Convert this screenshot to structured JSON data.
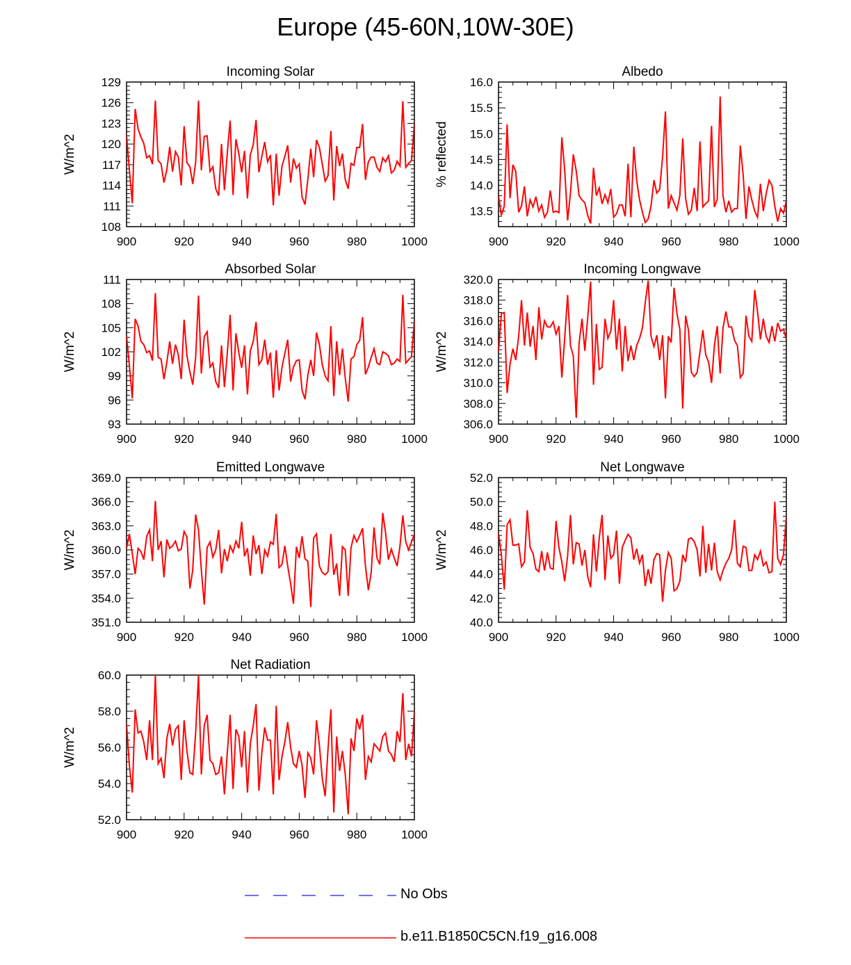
{
  "figure": {
    "title": "Europe (45-60N,10W-30E)"
  },
  "legend": {
    "items": [
      {
        "label": "No Obs",
        "color": "#4040e0",
        "style": "dashed"
      },
      {
        "label": "b.e11.B1850C5CN.f19_g16.008",
        "color": "#ff0000",
        "style": "solid"
      }
    ]
  },
  "chart_data": [
    {
      "type": "line",
      "title": "Incoming Solar",
      "xlabel": "",
      "ylabel": "W/m^2",
      "xlim": [
        900,
        1000
      ],
      "ylim": [
        108,
        129
      ],
      "xticks": [
        900,
        920,
        940,
        960,
        980,
        1000
      ],
      "yticks": [
        108,
        111,
        114,
        117,
        120,
        123,
        126,
        129
      ],
      "ytick_labels": [
        "108",
        "111",
        "114",
        "117",
        "120",
        "123",
        "126",
        "129"
      ],
      "series": [
        {
          "name": "b.e11.B1850C5CN.f19_g16.008",
          "color": "#ff0000",
          "x_start": 900,
          "x_step": 1,
          "values": [
            121.3,
            116.2,
            111.4,
            125.1,
            122.2,
            121.0,
            120.1,
            118.0,
            118.3,
            117.1,
            126.3,
            117.6,
            117.1,
            114.4,
            116.3,
            119.6,
            116.0,
            118.9,
            118.1,
            114.0,
            122.6,
            117.3,
            116.7,
            114.2,
            117.3,
            126.3,
            116.2,
            121.1,
            121.2,
            116.0,
            116.7,
            113.5,
            112.5,
            120.0,
            113.3,
            118.7,
            123.4,
            112.6,
            120.7,
            118.6,
            115.9,
            119.0,
            112.1,
            118.4,
            119.9,
            123.5,
            115.9,
            118.2,
            120.3,
            117.4,
            118.4,
            111.1,
            118.6,
            112.5,
            116.8,
            118.2,
            119.8,
            114.4,
            117.9,
            116.5,
            117.1,
            112.3,
            111.2,
            114.9,
            119.3,
            115.2,
            120.6,
            119.5,
            117.1,
            114.6,
            115.4,
            121.9,
            111.8,
            119.7,
            116.8,
            118.6,
            114.8,
            113.5,
            117.2,
            116.9,
            119.5,
            119.5,
            122.9,
            114.8,
            117.4,
            118.1,
            118.1,
            116.6,
            116.0,
            118.0,
            117.4,
            118.3,
            115.8,
            116.2,
            117.5,
            116.8,
            126.2,
            116.6,
            117.2,
            117.6,
            123.0
          ]
        }
      ]
    },
    {
      "type": "line",
      "title": "Albedo",
      "xlabel": "",
      "ylabel": "% reflected",
      "xlim": [
        900,
        1000
      ],
      "ylim": [
        13.2,
        16.0
      ],
      "xticks": [
        900,
        920,
        940,
        960,
        980,
        1000
      ],
      "yticks": [
        13.5,
        14.0,
        14.5,
        15.0,
        15.5,
        16.0
      ],
      "ytick_labels": [
        "13.5",
        "14.0",
        "14.5",
        "15.0",
        "15.5",
        "16.0"
      ],
      "series": [
        {
          "name": "b.e11.B1850C5CN.f19_g16.008",
          "color": "#ff0000",
          "x_start": 900,
          "x_step": 1,
          "values": [
            13.8,
            13.42,
            13.6,
            15.18,
            13.75,
            14.4,
            14.27,
            13.48,
            13.6,
            13.98,
            13.4,
            13.72,
            13.58,
            13.78,
            13.5,
            13.62,
            13.38,
            13.48,
            13.9,
            13.48,
            13.5,
            13.47,
            14.93,
            14.3,
            13.32,
            13.85,
            14.6,
            14.28,
            13.8,
            13.72,
            13.66,
            13.42,
            13.26,
            14.34,
            13.8,
            13.95,
            13.64,
            13.82,
            13.66,
            13.93,
            13.38,
            13.45,
            13.62,
            13.62,
            13.4,
            14.42,
            13.38,
            14.75,
            14.1,
            13.72,
            13.48,
            13.28,
            13.35,
            13.6,
            14.1,
            13.85,
            13.92,
            14.55,
            15.43,
            13.55,
            13.8,
            13.66,
            13.52,
            13.8,
            14.91,
            13.75,
            13.44,
            13.52,
            13.95,
            13.5,
            14.85,
            13.58,
            13.65,
            13.7,
            15.15,
            13.58,
            13.73,
            15.72,
            13.8,
            13.48,
            13.7,
            13.48,
            13.55,
            13.55,
            14.77,
            14.2,
            13.35,
            13.98,
            13.72,
            13.5,
            13.38,
            14.03,
            13.5,
            13.84,
            14.1,
            14.0,
            13.6,
            13.3,
            13.55,
            13.46,
            13.7
          ]
        }
      ]
    },
    {
      "type": "line",
      "title": "Absorbed Solar",
      "xlabel": "",
      "ylabel": "W/m^2",
      "xlim": [
        900,
        1000
      ],
      "ylim": [
        93,
        111
      ],
      "xticks": [
        900,
        920,
        940,
        960,
        980,
        1000
      ],
      "yticks": [
        93,
        96,
        99,
        102,
        105,
        108,
        111
      ],
      "ytick_labels": [
        "93",
        "96",
        "99",
        "102",
        "105",
        "108",
        "111"
      ],
      "series": [
        {
          "name": "b.e11.B1850C5CN.f19_g16.008",
          "color": "#ff0000",
          "x_start": 900,
          "x_step": 1,
          "values": [
            104.0,
            100.3,
            96.2,
            106.1,
            105.2,
            103.3,
            102.9,
            101.9,
            102.1,
            100.9,
            109.3,
            101.3,
            101.1,
            98.6,
            100.7,
            103.3,
            100.5,
            102.9,
            101.6,
            98.6,
            106.0,
            101.5,
            99.5,
            97.9,
            101.3,
            109.0,
            99.3,
            103.9,
            104.5,
            100.1,
            100.6,
            98.3,
            97.5,
            102.8,
            97.6,
            101.8,
            106.6,
            97.2,
            104.3,
            101.9,
            100.0,
            102.8,
            96.7,
            102.1,
            103.3,
            105.7,
            100.4,
            101.0,
            103.5,
            100.4,
            101.9,
            96.3,
            102.2,
            97.2,
            100.1,
            101.8,
            103.5,
            98.3,
            100.1,
            100.9,
            101.0,
            97.2,
            96.1,
            99.1,
            101.0,
            99.0,
            104.4,
            102.9,
            100.4,
            99.0,
            98.4,
            105.2,
            96.5,
            103.3,
            99.1,
            102.4,
            98.7,
            95.8,
            101.1,
            101.4,
            102.9,
            103.4,
            106.3,
            99.2,
            100.1,
            101.3,
            102.4,
            100.6,
            100.4,
            102.0,
            101.8,
            101.5,
            100.4,
            100.6,
            101.1,
            100.8,
            109.1,
            100.6,
            101.0,
            101.4,
            105.9
          ]
        }
      ]
    },
    {
      "type": "line",
      "title": "Incoming Longwave",
      "xlabel": "",
      "ylabel": "W/m^2",
      "xlim": [
        900,
        1000
      ],
      "ylim": [
        306.0,
        320.0
      ],
      "xticks": [
        900,
        920,
        940,
        960,
        980,
        1000
      ],
      "yticks": [
        306.0,
        308.0,
        310.0,
        312.0,
        314.0,
        316.0,
        318.0,
        320.0
      ],
      "ytick_labels": [
        "306.0",
        "308.0",
        "310.0",
        "312.0",
        "314.0",
        "316.0",
        "318.0",
        "320.0"
      ],
      "series": [
        {
          "name": "b.e11.B1850C5CN.f19_g16.008",
          "color": "#ff0000",
          "x_start": 900,
          "x_step": 1,
          "values": [
            313.0,
            316.7,
            316.8,
            309.0,
            311.8,
            313.3,
            312.2,
            314.5,
            318.0,
            313.6,
            316.8,
            313.5,
            315.5,
            312.2,
            317.3,
            314.2,
            316.0,
            315.4,
            315.4,
            315.9,
            314.7,
            315.5,
            310.5,
            314.3,
            318.5,
            313.6,
            312.6,
            306.6,
            313.8,
            316.2,
            313.1,
            316.3,
            319.8,
            309.8,
            315.7,
            311.3,
            311.5,
            316.2,
            314.3,
            315.0,
            318.0,
            313.2,
            316.2,
            311.1,
            315.5,
            312.1,
            313.6,
            312.2,
            313.6,
            314.3,
            315.3,
            317.8,
            319.9,
            314.5,
            313.5,
            314.6,
            312.2,
            314.6,
            308.5,
            314.5,
            313.9,
            319.2,
            316.7,
            315.2,
            307.5,
            316.5,
            315.1,
            311.0,
            310.6,
            311.0,
            313.0,
            315.1,
            312.7,
            312.0,
            310.0,
            313.6,
            315.5,
            310.9,
            315.3,
            316.9,
            315.4,
            315.4,
            314.1,
            313.6,
            310.5,
            310.9,
            316.5,
            314.5,
            314.0,
            319.0,
            316.9,
            314.2,
            316.2,
            314.5,
            313.9,
            315.5,
            314.0,
            315.8,
            315.0,
            315.2,
            314.2
          ]
        }
      ]
    },
    {
      "type": "line",
      "title": "Emitted Longwave",
      "xlabel": "",
      "ylabel": "W/m^2",
      "xlim": [
        900,
        1000
      ],
      "ylim": [
        351.0,
        369.0
      ],
      "xticks": [
        900,
        920,
        940,
        960,
        980,
        1000
      ],
      "yticks": [
        351.0,
        354.0,
        357.0,
        360.0,
        363.0,
        366.0,
        369.0
      ],
      "ytick_labels": [
        "351.0",
        "354.0",
        "357.0",
        "360.0",
        "363.0",
        "366.0",
        "369.0"
      ],
      "series": [
        {
          "name": "b.e11.B1850C5CN.f19_g16.008",
          "color": "#ff0000",
          "x_start": 900,
          "x_step": 1,
          "values": [
            360.2,
            362.0,
            359.5,
            357.0,
            360.2,
            359.8,
            358.8,
            361.7,
            362.5,
            358.6,
            366.1,
            360.0,
            361.1,
            356.6,
            361.3,
            360.2,
            360.5,
            361.1,
            359.9,
            360.1,
            362.3,
            361.6,
            355.2,
            357.5,
            364.4,
            362.5,
            357.5,
            353.2,
            360.3,
            361.0,
            359.1,
            360.0,
            362.5,
            357.1,
            360.1,
            358.6,
            360.5,
            359.7,
            361.1,
            360.2,
            363.5,
            359.2,
            360.2,
            356.8,
            361.8,
            359.5,
            360.6,
            357.0,
            360.0,
            359.2,
            361.0,
            360.7,
            364.5,
            357.8,
            358.2,
            360.5,
            358.0,
            355.8,
            353.3,
            360.4,
            359.0,
            361.7,
            358.9,
            358.6,
            352.9,
            361.5,
            362.0,
            358.0,
            357.2,
            356.9,
            357.3,
            362.0,
            356.9,
            358.3,
            354.3,
            360.4,
            360.0,
            354.3,
            360.3,
            361.8,
            361.0,
            361.8,
            362.7,
            358.0,
            355.0,
            357.2,
            362.8,
            359.0,
            358.2,
            364.6,
            362.1,
            358.8,
            360.1,
            359.0,
            358.0,
            360.5,
            364.3,
            361.0,
            360.0,
            361.0,
            362.0
          ]
        }
      ]
    },
    {
      "type": "line",
      "title": "Net Longwave",
      "xlabel": "",
      "ylabel": "W/m^2",
      "xlim": [
        900,
        1000
      ],
      "ylim": [
        40.0,
        52.0
      ],
      "xticks": [
        900,
        920,
        940,
        960,
        980,
        1000
      ],
      "yticks": [
        40.0,
        42.0,
        44.0,
        46.0,
        48.0,
        50.0,
        52.0
      ],
      "ytick_labels": [
        "40.0",
        "42.0",
        "44.0",
        "46.0",
        "48.0",
        "50.0",
        "52.0"
      ],
      "series": [
        {
          "name": "b.e11.B1850C5CN.f19_g16.008",
          "color": "#ff0000",
          "x_start": 900,
          "x_step": 1,
          "values": [
            47.4,
            45.6,
            42.7,
            48.1,
            48.5,
            46.4,
            46.4,
            46.5,
            44.6,
            45.0,
            49.3,
            46.2,
            45.7,
            44.4,
            44.2,
            45.9,
            44.3,
            45.8,
            44.5,
            44.4,
            48.4,
            46.2,
            45.0,
            43.4,
            45.5,
            48.9,
            44.8,
            46.6,
            46.5,
            44.7,
            46.0,
            43.8,
            42.9,
            47.3,
            44.2,
            47.0,
            48.9,
            43.5,
            47.2,
            45.3,
            45.6,
            47.6,
            43.2,
            46.2,
            46.8,
            47.3,
            47.0,
            45.2,
            46.1,
            44.9,
            45.6,
            43.0,
            44.4,
            43.2,
            45.2,
            45.7,
            45.6,
            41.7,
            44.3,
            45.8,
            45.3,
            42.6,
            42.8,
            43.4,
            45.6,
            45.0,
            46.9,
            47.0,
            46.7,
            46.0,
            43.8,
            48.0,
            44.1,
            46.5,
            44.3,
            46.6,
            44.2,
            43.5,
            44.3,
            44.9,
            45.3,
            46.0,
            48.5,
            44.9,
            44.6,
            46.3,
            46.2,
            44.3,
            44.3,
            45.6,
            45.2,
            45.9,
            44.7,
            45.0,
            44.1,
            44.2,
            50.0,
            45.3,
            44.8,
            45.6,
            48.8
          ]
        }
      ]
    },
    {
      "type": "line",
      "title": "Net Radiation",
      "xlabel": "",
      "ylabel": "W/m^2",
      "xlim": [
        900,
        1000
      ],
      "ylim": [
        52.0,
        60.0
      ],
      "xticks": [
        900,
        920,
        940,
        960,
        980,
        1000
      ],
      "yticks": [
        52.0,
        54.0,
        56.0,
        58.0,
        60.0
      ],
      "ytick_labels": [
        "52.0",
        "54.0",
        "56.0",
        "58.0",
        "60.0"
      ],
      "series": [
        {
          "name": "b.e11.B1850C5CN.f19_g16.008",
          "color": "#ff0000",
          "x_start": 900,
          "x_step": 1,
          "values": [
            57.3,
            55.0,
            53.5,
            58.1,
            56.8,
            56.9,
            56.3,
            55.3,
            57.5,
            55.3,
            60.0,
            55.1,
            55.4,
            54.3,
            56.5,
            57.3,
            56.1,
            57.0,
            57.2,
            54.2,
            57.5,
            55.8,
            54.6,
            54.5,
            56.8,
            60.0,
            54.5,
            57.2,
            57.8,
            55.3,
            55.1,
            54.5,
            54.6,
            55.5,
            53.4,
            55.7,
            57.8,
            53.7,
            57.0,
            56.6,
            54.9,
            56.9,
            53.5,
            56.2,
            57.2,
            58.4,
            53.6,
            55.7,
            57.1,
            56.4,
            56.4,
            53.4,
            58.3,
            54.2,
            55.5,
            56.3,
            57.4,
            56.0,
            55.1,
            54.9,
            55.8,
            55.0,
            53.2,
            55.7,
            55.4,
            54.5,
            57.5,
            56.1,
            54.3,
            53.3,
            55.9,
            58.1,
            52.4,
            56.6,
            54.7,
            55.8,
            54.5,
            52.3,
            56.5,
            55.8,
            57.6,
            57.0,
            57.8,
            54.2,
            55.5,
            55.2,
            56.2,
            56.0,
            55.8,
            56.6,
            56.8,
            55.8,
            55.6,
            55.2,
            56.9,
            56.3,
            59.0,
            55.3,
            56.2,
            55.5,
            58.0
          ]
        }
      ]
    }
  ]
}
